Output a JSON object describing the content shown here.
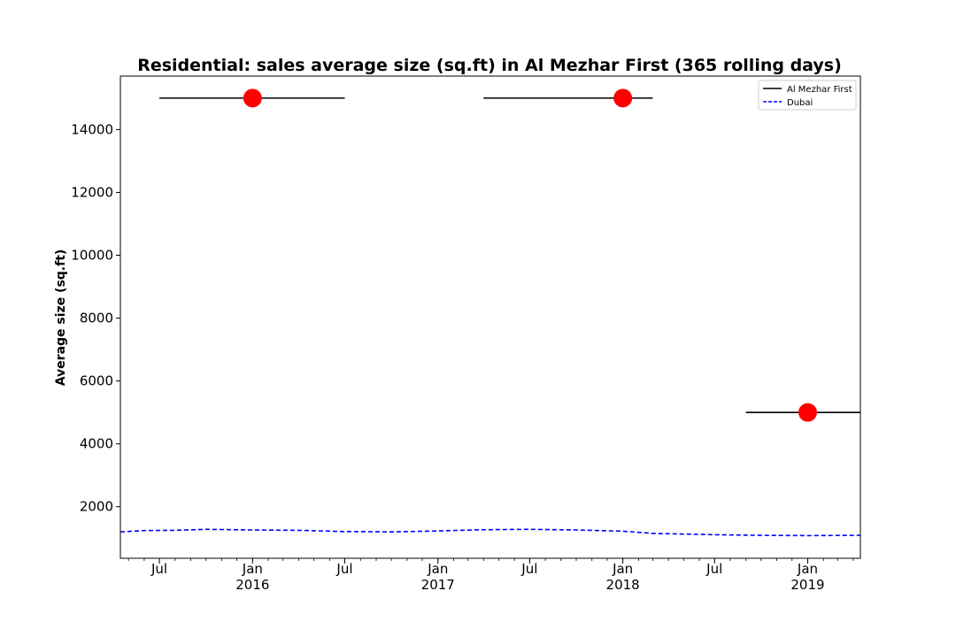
{
  "chart_data": {
    "type": "line",
    "title": "Residential: sales average size (sq.ft) in Al Mezhar First (365 rolling days)",
    "xlabel": "",
    "ylabel": "Average size (sq.ft)",
    "ylim": [
      360,
      15700
    ],
    "xlim": [
      "2015-04-15",
      "2019-04-15"
    ],
    "grid": false,
    "legend_position": "top-right",
    "x_ticks": [
      {
        "date": "2015-07-01",
        "label": "Jul",
        "sublabel": ""
      },
      {
        "date": "2016-01-01",
        "label": "Jan",
        "sublabel": "2016"
      },
      {
        "date": "2016-07-01",
        "label": "Jul",
        "sublabel": ""
      },
      {
        "date": "2017-01-01",
        "label": "Jan",
        "sublabel": "2017"
      },
      {
        "date": "2017-07-01",
        "label": "Jul",
        "sublabel": ""
      },
      {
        "date": "2018-01-01",
        "label": "Jan",
        "sublabel": "2018"
      },
      {
        "date": "2018-07-01",
        "label": "Jul",
        "sublabel": ""
      },
      {
        "date": "2019-01-01",
        "label": "Jan",
        "sublabel": "2019"
      }
    ],
    "y_ticks": [
      2000,
      4000,
      6000,
      8000,
      10000,
      12000,
      14000
    ],
    "series": [
      {
        "name": "Al Mezhar First",
        "color": "#000000",
        "style": "solid",
        "segments": [
          {
            "x_start": "2015-07-01",
            "x_end": "2016-07-01",
            "y": 15000
          },
          {
            "x_start": "2017-04-01",
            "x_end": "2018-03-01",
            "y": 15000
          },
          {
            "x_start": "2018-09-01",
            "x_end": "2019-04-15",
            "y": 5000
          }
        ]
      },
      {
        "name": "Dubai",
        "color": "#0000ff",
        "style": "dashed",
        "points": [
          {
            "x": "2015-04-15",
            "y": 1200
          },
          {
            "x": "2015-06-01",
            "y": 1240
          },
          {
            "x": "2015-08-01",
            "y": 1250
          },
          {
            "x": "2015-10-01",
            "y": 1280
          },
          {
            "x": "2016-01-01",
            "y": 1260
          },
          {
            "x": "2016-04-01",
            "y": 1250
          },
          {
            "x": "2016-07-01",
            "y": 1210
          },
          {
            "x": "2016-10-01",
            "y": 1200
          },
          {
            "x": "2017-01-01",
            "y": 1230
          },
          {
            "x": "2017-04-01",
            "y": 1270
          },
          {
            "x": "2017-07-01",
            "y": 1280
          },
          {
            "x": "2017-10-01",
            "y": 1260
          },
          {
            "x": "2018-01-01",
            "y": 1220
          },
          {
            "x": "2018-03-01",
            "y": 1150
          },
          {
            "x": "2018-07-01",
            "y": 1110
          },
          {
            "x": "2018-10-01",
            "y": 1090
          },
          {
            "x": "2019-01-01",
            "y": 1080
          },
          {
            "x": "2019-04-15",
            "y": 1090
          }
        ]
      }
    ],
    "markers": {
      "color": "#ff0000",
      "points": [
        {
          "x": "2016-01-01",
          "y": 15000
        },
        {
          "x": "2018-01-01",
          "y": 15000
        },
        {
          "x": "2019-01-01",
          "y": 5000
        }
      ]
    }
  }
}
